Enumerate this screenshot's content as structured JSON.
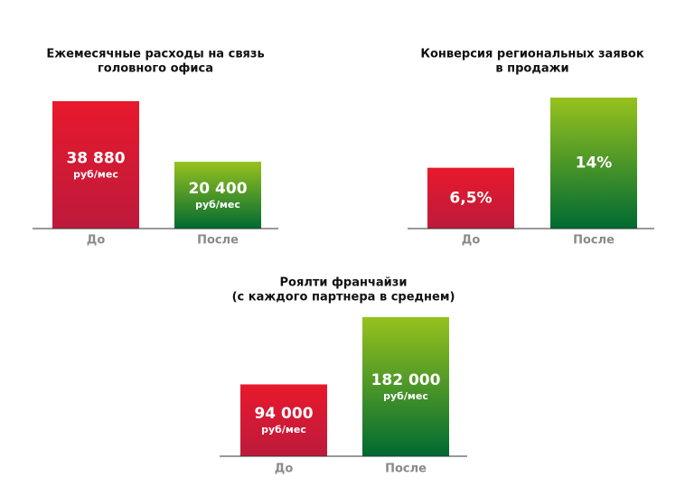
{
  "chart_data": [
    {
      "type": "bar",
      "title": [
        "Ежемесячные расходы на связь",
        "головного офиса"
      ],
      "categories": [
        "До",
        "После"
      ],
      "values": [
        38880,
        20400
      ],
      "value_labels": [
        "38 880",
        "20 400"
      ],
      "unit_label": "руб/мес",
      "colors": [
        [
          "#e8192c",
          "#bd1a3c"
        ],
        [
          "#97c21e",
          "#006a32"
        ]
      ]
    },
    {
      "type": "bar",
      "title": [
        "Конверсия региональных заявок",
        "в продажи"
      ],
      "categories": [
        "До",
        "После"
      ],
      "values": [
        6.5,
        14
      ],
      "value_labels": [
        "6,5%",
        "14%"
      ],
      "colors": [
        [
          "#e8192c",
          "#bd1a3c"
        ],
        [
          "#97c21e",
          "#006a32"
        ]
      ]
    },
    {
      "type": "bar",
      "title": [
        "Роялти франчайзи",
        "(с каждого партнера в среднем)"
      ],
      "categories": [
        "До",
        "После"
      ],
      "values": [
        94000,
        182000
      ],
      "value_labels": [
        "94 000",
        "182 000"
      ],
      "unit_label": "руб/мес",
      "colors": [
        [
          "#e8192c",
          "#bd1a3c"
        ],
        [
          "#97c21e",
          "#006a32"
        ]
      ]
    }
  ]
}
